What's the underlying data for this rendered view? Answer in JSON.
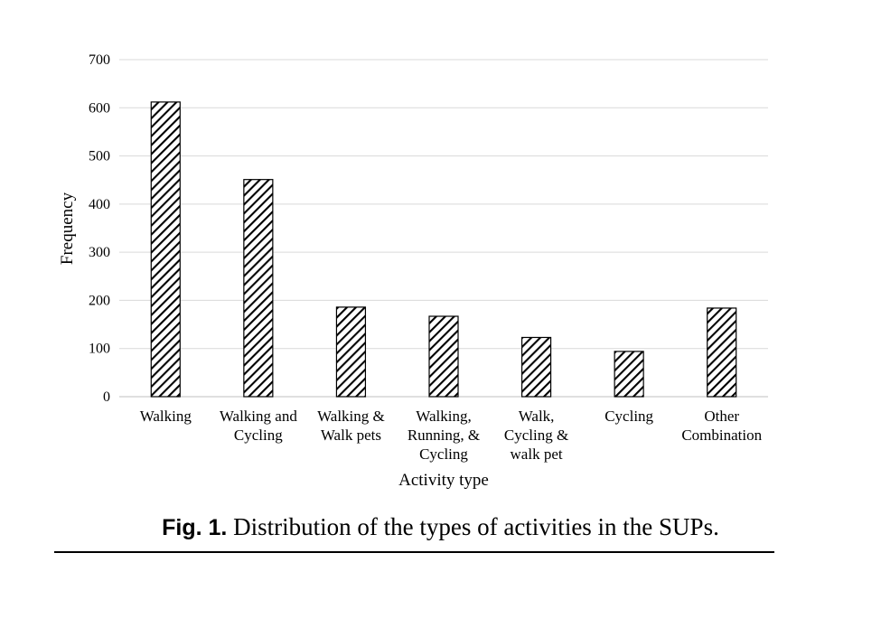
{
  "chart_data": {
    "type": "bar",
    "categories": [
      [
        "Walking"
      ],
      [
        "Walking and",
        "Cycling"
      ],
      [
        "Walking &",
        "Walk pets"
      ],
      [
        "Walking,",
        "Running, &",
        "Cycling"
      ],
      [
        "Walk,",
        "Cycling &",
        "walk pet"
      ],
      [
        "Cycling"
      ],
      [
        "Other",
        "Combination"
      ]
    ],
    "values": [
      612,
      451,
      186,
      167,
      123,
      94,
      184
    ],
    "xlabel": "Activity type",
    "ylabel": "Frequency",
    "ylim": [
      0,
      700
    ],
    "yticks": [
      0,
      100,
      200,
      300,
      400,
      500,
      600,
      700
    ],
    "grid": true,
    "bar_pattern": "diagonal-hatch",
    "colors": {
      "hatch": "#000000",
      "grid": "#d9d9d9",
      "bar_fill": "#ffffff"
    }
  },
  "caption": {
    "label": "Fig. 1.",
    "text": " Distribution of the types of activities in the SUPs."
  }
}
